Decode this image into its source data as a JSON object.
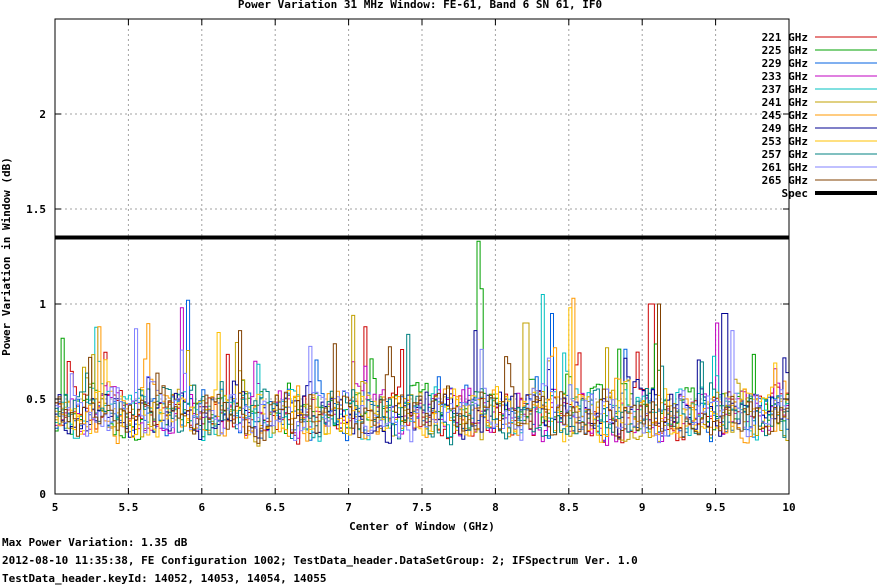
{
  "chart_data": {
    "type": "line",
    "title": "Power Variation 31 MHz Window: FE-61, Band 6 SN 61, IF0",
    "xlabel": "Center of Window (GHz)",
    "ylabel": "Power Variation in Window (dB)",
    "xlim": [
      5,
      10
    ],
    "ylim": [
      0,
      2.5
    ],
    "x_ticks": [
      "5",
      "5.5",
      "6",
      "6.5",
      "7",
      "7.5",
      "8",
      "8.5",
      "9",
      "9.5",
      "10"
    ],
    "y_ticks": [
      "0",
      "0.5",
      "1",
      "1.5",
      "2"
    ],
    "grid": true,
    "legend_position": "top-right",
    "series": [
      {
        "name": "221 GHz",
        "color": "#cc0000",
        "baseline": 0.42,
        "spread": 0.14,
        "spikes": [
          [
            7.1,
            0.88
          ],
          [
            9.05,
            1.0
          ]
        ]
      },
      {
        "name": "225 GHz",
        "color": "#00a000",
        "baseline": 0.42,
        "spread": 0.14,
        "spikes": [
          [
            7.88,
            1.33
          ],
          [
            7.9,
            1.08
          ],
          [
            5.05,
            0.82
          ]
        ]
      },
      {
        "name": "229 GHz",
        "color": "#0060e0",
        "baseline": 0.42,
        "spread": 0.14,
        "spikes": [
          [
            5.9,
            1.02
          ],
          [
            8.38,
            0.95
          ]
        ]
      },
      {
        "name": "233 GHz",
        "color": "#c000c0",
        "baseline": 0.42,
        "spread": 0.14,
        "spikes": [
          [
            5.85,
            0.98
          ],
          [
            9.5,
            0.9
          ]
        ]
      },
      {
        "name": "237 GHz",
        "color": "#00c0c0",
        "baseline": 0.42,
        "spread": 0.14,
        "spikes": [
          [
            8.32,
            1.05
          ]
        ]
      },
      {
        "name": "241 GHz",
        "color": "#c0a000",
        "baseline": 0.42,
        "spread": 0.14,
        "spikes": [
          [
            7.02,
            0.94
          ],
          [
            8.2,
            0.9
          ]
        ]
      },
      {
        "name": "245 GHz",
        "color": "#ff9900",
        "baseline": 0.42,
        "spread": 0.14,
        "spikes": [
          [
            8.52,
            1.03
          ],
          [
            5.3,
            0.88
          ]
        ]
      },
      {
        "name": "249 GHz",
        "color": "#000090",
        "baseline": 0.42,
        "spread": 0.14,
        "spikes": [
          [
            9.55,
            0.95
          ],
          [
            7.85,
            0.86
          ]
        ]
      },
      {
        "name": "253 GHz",
        "color": "#ffc000",
        "baseline": 0.42,
        "spread": 0.14,
        "spikes": [
          [
            6.1,
            0.85
          ],
          [
            8.5,
            0.98
          ]
        ]
      },
      {
        "name": "257 GHz",
        "color": "#008080",
        "baseline": 0.42,
        "spread": 0.14,
        "spikes": [
          [
            7.4,
            0.84
          ]
        ]
      },
      {
        "name": "261 GHz",
        "color": "#8080ff",
        "baseline": 0.42,
        "spread": 0.14,
        "spikes": [
          [
            5.55,
            0.87
          ],
          [
            9.6,
            0.86
          ]
        ]
      },
      {
        "name": "265 GHz",
        "color": "#804000",
        "baseline": 0.42,
        "spread": 0.14,
        "spikes": [
          [
            9.1,
            1.0
          ],
          [
            6.25,
            0.86
          ]
        ]
      }
    ],
    "spec": {
      "name": "Spec",
      "value": 1.35,
      "color": "#000000"
    }
  },
  "footer": {
    "line1": "Max Power Variation: 1.35 dB",
    "line2": "2012-08-10 11:35:38, FE Configuration 1002; TestData_header.DataSetGroup: 2; IFSpectrum Ver. 1.0",
    "line3": "TestData_header.keyId: 14052, 14053, 14054, 14055"
  }
}
